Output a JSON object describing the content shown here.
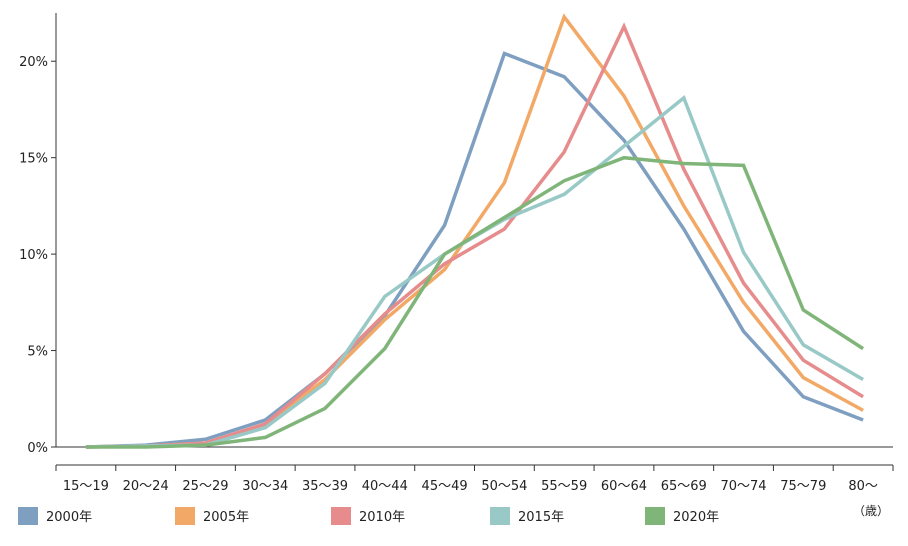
{
  "chart_data": {
    "type": "line",
    "categories": [
      "15～19",
      "20～24",
      "25～29",
      "30～34",
      "35～39",
      "40～44",
      "45～49",
      "50～54",
      "55～59",
      "60～64",
      "65～69",
      "70～74",
      "75～79",
      "80～"
    ],
    "x_unit": "（歳）",
    "yticks": [
      "0%",
      "5%",
      "10%",
      "15%",
      "20%"
    ],
    "ylim": [
      0,
      22.5
    ],
    "grid": false,
    "legend_position": "bottom",
    "series": [
      {
        "name": "2000年",
        "color": "#7f9fc1",
        "values": [
          0.0,
          0.1,
          0.4,
          1.4,
          3.8,
          6.8,
          11.5,
          20.4,
          19.2,
          15.9,
          11.3,
          6.0,
          2.6,
          1.4
        ]
      },
      {
        "name": "2005年",
        "color": "#f2a967",
        "values": [
          0.0,
          0.05,
          0.2,
          1.2,
          3.5,
          6.6,
          9.2,
          13.7,
          22.3,
          18.2,
          12.5,
          7.5,
          3.6,
          1.9
        ]
      },
      {
        "name": "2010年",
        "color": "#e68c8c",
        "values": [
          0.0,
          0.05,
          0.2,
          1.2,
          3.8,
          6.9,
          9.5,
          11.3,
          15.3,
          21.8,
          14.4,
          8.5,
          4.5,
          2.6
        ]
      },
      {
        "name": "2015年",
        "color": "#98c9c6",
        "values": [
          0.0,
          0.05,
          0.1,
          1.0,
          3.3,
          7.8,
          10.0,
          11.8,
          13.1,
          15.6,
          18.1,
          10.1,
          5.3,
          3.5
        ]
      },
      {
        "name": "2020年",
        "color": "#80b57a",
        "values": [
          0.0,
          0.0,
          0.1,
          0.5,
          2.0,
          5.1,
          10.0,
          11.9,
          13.8,
          15.0,
          14.7,
          14.6,
          7.1,
          5.1
        ]
      }
    ]
  }
}
